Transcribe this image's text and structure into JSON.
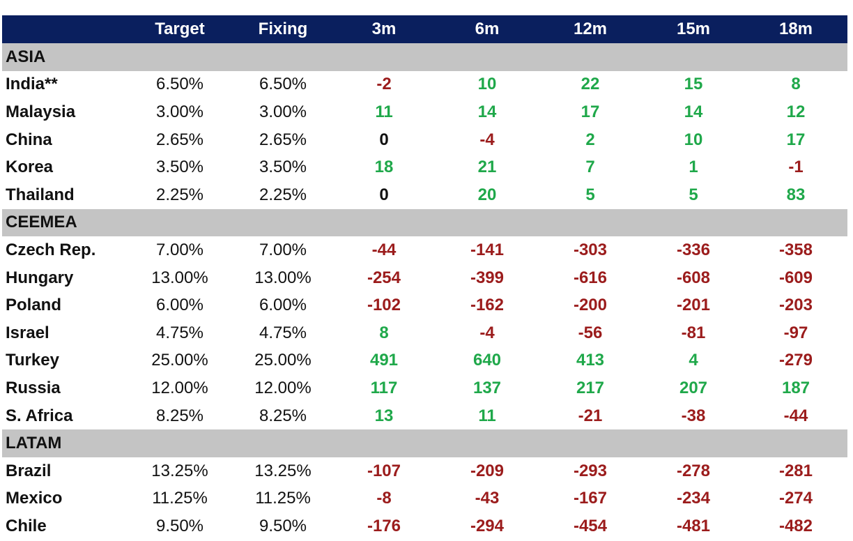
{
  "columns": [
    "Target",
    "Fixing",
    "3m",
    "6m",
    "12m",
    "15m",
    "18m"
  ],
  "sections": [
    {
      "name": "ASIA",
      "rows": [
        {
          "country": "India**",
          "target": "6.50%",
          "fixing": "6.50%",
          "values": [
            "-2",
            "10",
            "22",
            "15",
            "8"
          ]
        },
        {
          "country": "Malaysia",
          "target": "3.00%",
          "fixing": "3.00%",
          "values": [
            "11",
            "14",
            "17",
            "14",
            "12"
          ]
        },
        {
          "country": "China",
          "target": "2.65%",
          "fixing": "2.65%",
          "values": [
            "0",
            "-4",
            "2",
            "10",
            "17"
          ]
        },
        {
          "country": "Korea",
          "target": "3.50%",
          "fixing": "3.50%",
          "values": [
            "18",
            "21",
            "7",
            "1",
            "-1"
          ]
        },
        {
          "country": "Thailand",
          "target": "2.25%",
          "fixing": "2.25%",
          "values": [
            "0",
            "20",
            "5",
            "5",
            "83"
          ]
        }
      ]
    },
    {
      "name": "CEEMEA",
      "rows": [
        {
          "country": "Czech Rep.",
          "target": "7.00%",
          "fixing": "7.00%",
          "values": [
            "-44",
            "-141",
            "-303",
            "-336",
            "-358"
          ]
        },
        {
          "country": "Hungary",
          "target": "13.00%",
          "fixing": "13.00%",
          "values": [
            "-254",
            "-399",
            "-616",
            "-608",
            "-609"
          ]
        },
        {
          "country": "Poland",
          "target": "6.00%",
          "fixing": "6.00%",
          "values": [
            "-102",
            "-162",
            "-200",
            "-201",
            "-203"
          ]
        },
        {
          "country": "Israel",
          "target": "4.75%",
          "fixing": "4.75%",
          "values": [
            "8",
            "-4",
            "-56",
            "-81",
            "-97"
          ]
        },
        {
          "country": "Turkey",
          "target": "25.00%",
          "fixing": "25.00%",
          "values": [
            "491",
            "640",
            "413",
            "4",
            "-279"
          ]
        },
        {
          "country": "Russia",
          "target": "12.00%",
          "fixing": "12.00%",
          "values": [
            "117",
            "137",
            "217",
            "207",
            "187"
          ]
        },
        {
          "country": "S. Africa",
          "target": "8.25%",
          "fixing": "8.25%",
          "values": [
            "13",
            "11",
            "-21",
            "-38",
            "-44"
          ]
        }
      ]
    },
    {
      "name": "LATAM",
      "rows": [
        {
          "country": "Brazil",
          "target": "13.25%",
          "fixing": "13.25%",
          "values": [
            "-107",
            "-209",
            "-293",
            "-278",
            "-281"
          ]
        },
        {
          "country": "Mexico",
          "target": "11.25%",
          "fixing": "11.25%",
          "values": [
            "-8",
            "-43",
            "-167",
            "-234",
            "-274"
          ]
        },
        {
          "country": "Chile",
          "target": "9.50%",
          "fixing": "9.50%",
          "values": [
            "-176",
            "-294",
            "-454",
            "-481",
            "-482"
          ]
        }
      ]
    }
  ],
  "colors": {
    "header_bg": "#0a1f5e",
    "section_bg": "#c4c4c4",
    "positive": "#1fa84a",
    "negative": "#9b1c1c",
    "zero": "#111111"
  }
}
